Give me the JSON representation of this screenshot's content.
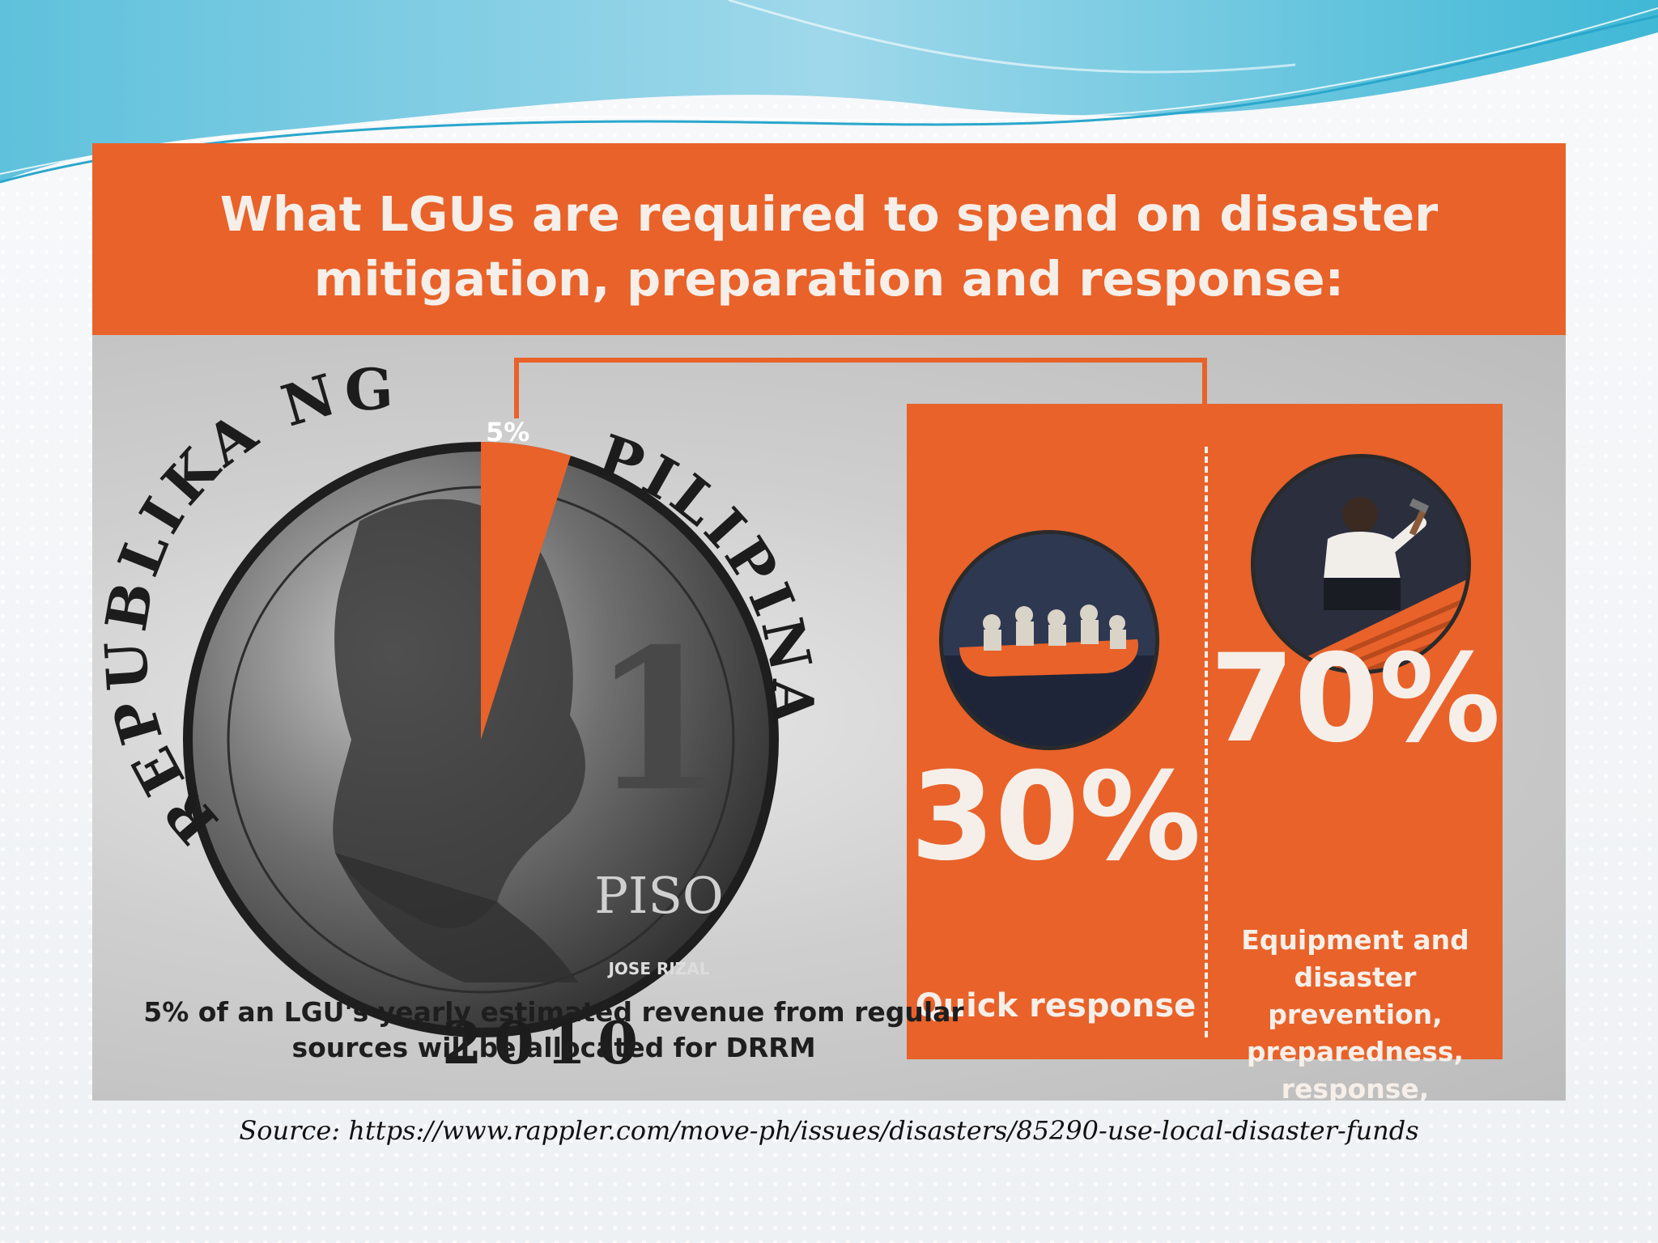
{
  "infographic": {
    "title": "What LGUs are required to spend on disaster mitigation, preparation and response:",
    "coin": {
      "highlight_label": "5%",
      "inscription_left": "REPUBLIKA NG",
      "inscription_right": "PILIPINAS",
      "denomination": "1",
      "unit": "PISO",
      "portrait_name": "JOSE RIZAL",
      "year": "2010"
    },
    "caption": "5% of an LGU's yearly estimated revenue from regular sources will be allocated for DRRM",
    "breakdown": [
      {
        "percent": "30%",
        "description": "Quick response",
        "icon": "rescue-boat-icon"
      },
      {
        "percent": "70%",
        "description": "Equipment and disaster prevention, preparedness, response, rehabilitation and recovery",
        "icon": "roof-repair-icon"
      }
    ],
    "colors": {
      "accent": "#e8622a",
      "text_light": "#f6efe9"
    }
  },
  "source": "Source: https://www.rappler.com/move-ph/issues/disasters/85290-use-local-disaster-funds"
}
